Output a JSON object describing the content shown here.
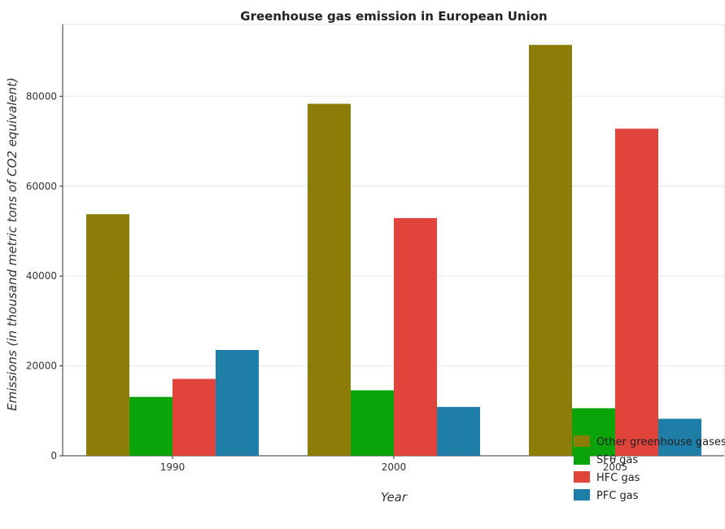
{
  "chart_data": {
    "type": "bar",
    "title": "Greenhouse gas emission in European Union",
    "xlabel": "Year",
    "ylabel": "Emissions (in thousand metric tons of CO2 equivalent)",
    "categories": [
      "1990",
      "2000",
      "2005"
    ],
    "series": [
      {
        "name": "Other greenhouse gases",
        "color": "#8c7d08",
        "values": [
          53760,
          78330,
          91440
        ]
      },
      {
        "name": "SF6 gas",
        "color": "#0aa30a",
        "values": [
          13100,
          14570,
          10580
        ]
      },
      {
        "name": "HFC gas",
        "color": "#e0443a",
        "values": [
          17110,
          52900,
          72790
        ]
      },
      {
        "name": "PFC gas",
        "color": "#1e7ea8",
        "values": [
          23540,
          10860,
          8230
        ]
      }
    ],
    "yticks": [
      0,
      20000,
      40000,
      60000,
      80000
    ],
    "ylim": [
      0,
      96000
    ],
    "legend_position": "bottom-right",
    "grid": true
  }
}
